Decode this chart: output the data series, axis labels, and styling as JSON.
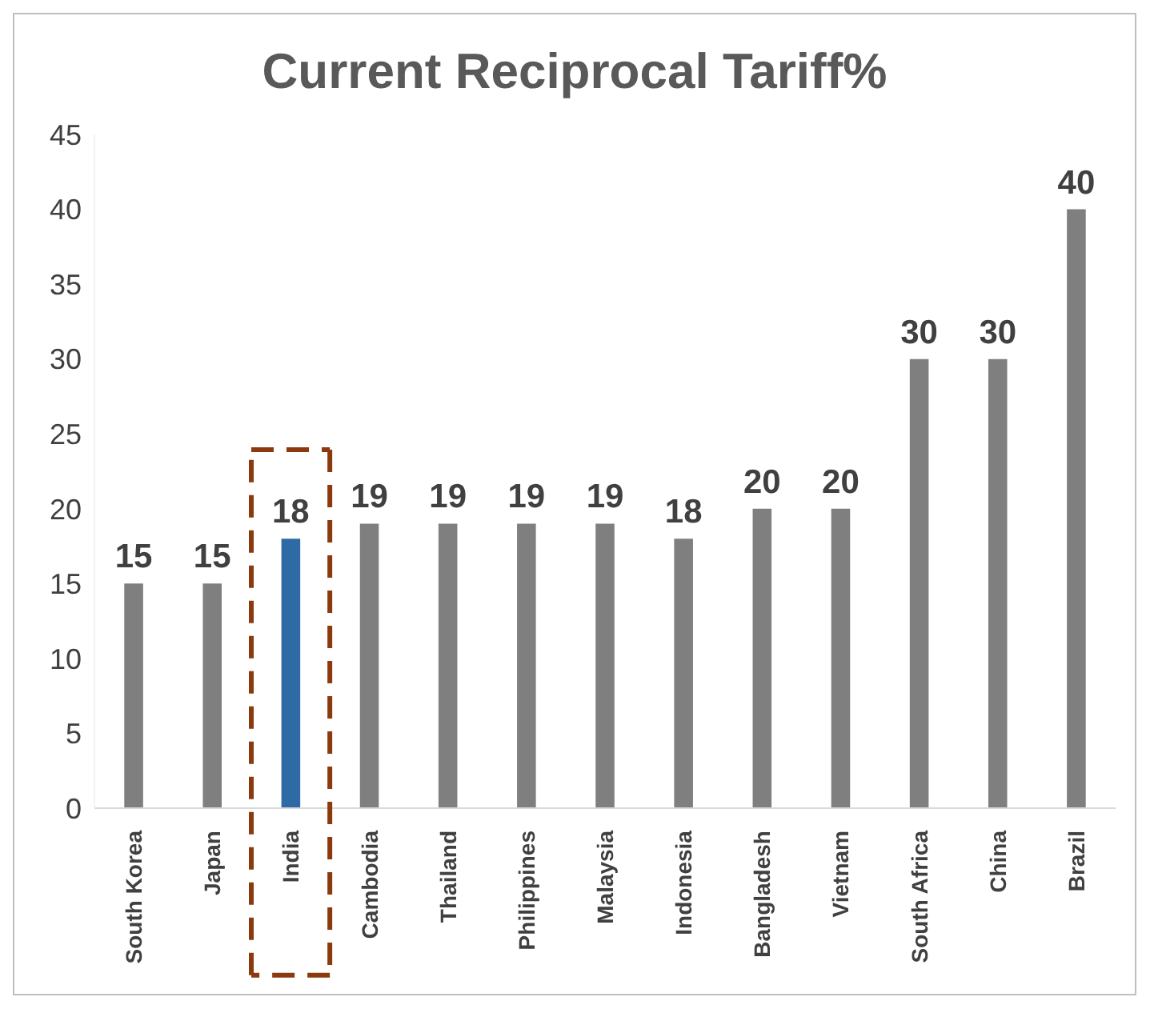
{
  "chart_data": {
    "type": "bar",
    "title": "Current Reciprocal Tariff%",
    "categories": [
      "South Korea",
      "Japan",
      "India",
      "Cambodia",
      "Thailand",
      "Philippines",
      "Malaysia",
      "Indonesia",
      "Bangladesh",
      "Vietnam",
      "South Africa",
      "China",
      "Brazil"
    ],
    "values": [
      15,
      15,
      18,
      19,
      19,
      19,
      19,
      18,
      20,
      20,
      30,
      30,
      40
    ],
    "colors": [
      "#7f7f7f",
      "#7f7f7f",
      "#2e6aa6",
      "#7f7f7f",
      "#7f7f7f",
      "#7f7f7f",
      "#7f7f7f",
      "#7f7f7f",
      "#7f7f7f",
      "#7f7f7f",
      "#7f7f7f",
      "#7f7f7f",
      "#7f7f7f"
    ],
    "ylim": [
      0,
      45
    ],
    "yticks": [
      0,
      5,
      10,
      15,
      20,
      25,
      30,
      35,
      40,
      45
    ],
    "grid": false,
    "data_labels": true
  }
}
